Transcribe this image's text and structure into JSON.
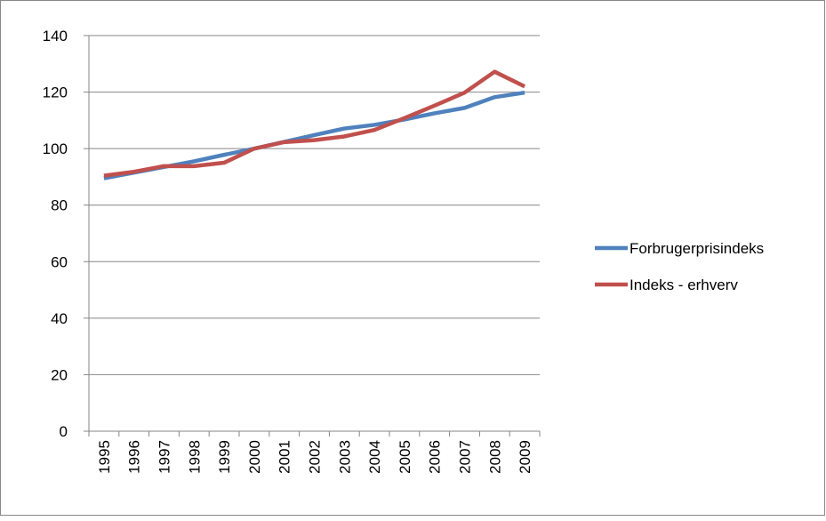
{
  "chart_data": {
    "type": "line",
    "categories": [
      "1995",
      "1996",
      "1997",
      "1998",
      "1999",
      "2000",
      "2001",
      "2002",
      "2003",
      "2004",
      "2005",
      "2006",
      "2007",
      "2008",
      "2009"
    ],
    "series": [
      {
        "name": "Forbrugerprisindeks",
        "color": "#4f81bd",
        "values": [
          89.5,
          91.5,
          93.5,
          95.5,
          97.8,
          100,
          102.4,
          104.8,
          107.1,
          108.4,
          110.3,
          112.5,
          114.4,
          118.2,
          119.8
        ]
      },
      {
        "name": "Indeks - erhverv",
        "color": "#c0504d",
        "values": [
          90.4,
          91.8,
          93.8,
          93.8,
          95.0,
          100,
          102.3,
          103.0,
          104.3,
          106.6,
          110.8,
          115.2,
          119.8,
          127.2,
          122.0
        ]
      }
    ],
    "ylim": [
      0,
      140
    ],
    "yticks": [
      0,
      20,
      40,
      60,
      80,
      100,
      120,
      140
    ],
    "grid": true,
    "legend": "right"
  }
}
